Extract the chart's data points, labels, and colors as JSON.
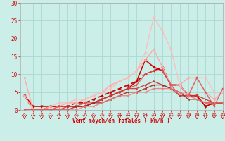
{
  "xlabel": "Vent moyen/en rafales ( km/h )",
  "background_color": "#cceee8",
  "grid_color": "#aad8d2",
  "xlim": [
    -0.5,
    23
  ],
  "ylim": [
    0,
    30
  ],
  "xticks": [
    0,
    1,
    2,
    3,
    4,
    5,
    6,
    7,
    8,
    9,
    10,
    11,
    12,
    13,
    14,
    15,
    16,
    17,
    18,
    19,
    20,
    21,
    22,
    23
  ],
  "yticks": [
    0,
    5,
    10,
    15,
    20,
    25,
    30
  ],
  "series": [
    {
      "x": [
        0,
        1,
        2,
        3,
        4,
        5,
        6,
        7,
        8,
        9,
        10,
        11,
        12,
        13,
        14,
        15,
        16,
        17,
        18,
        19,
        20,
        21,
        22,
        23
      ],
      "y": [
        4,
        0,
        0,
        1,
        1,
        1,
        2,
        2,
        3,
        4,
        5,
        6,
        7,
        8,
        10,
        11,
        12,
        7,
        7,
        4,
        4,
        1,
        2,
        2
      ],
      "color": "#cc0000",
      "marker": "D",
      "lw": 1.2,
      "ms": 1.8,
      "alpha": 1.0,
      "dashes": [
        4,
        2
      ]
    },
    {
      "x": [
        0,
        1,
        2,
        3,
        4,
        5,
        6,
        7,
        8,
        9,
        10,
        11,
        12,
        13,
        14,
        15,
        16,
        17,
        18,
        19,
        20,
        21,
        22,
        23
      ],
      "y": [
        4,
        1,
        1,
        1,
        1,
        1,
        1,
        1,
        2,
        3,
        4,
        5,
        6,
        8,
        14,
        12,
        11,
        7,
        7,
        4,
        4,
        1,
        2,
        2
      ],
      "color": "#cc0000",
      "marker": "v",
      "lw": 1.2,
      "ms": 2.5,
      "alpha": 1.0,
      "dashes": []
    },
    {
      "x": [
        0,
        1,
        2,
        3,
        4,
        5,
        6,
        7,
        8,
        9,
        10,
        11,
        12,
        13,
        14,
        15,
        16,
        17,
        18,
        19,
        20,
        21,
        22,
        23
      ],
      "y": [
        9,
        0,
        0,
        0,
        1,
        2,
        2,
        3,
        4,
        5,
        7,
        8,
        9,
        11,
        14,
        17,
        12,
        7,
        7,
        9,
        9,
        5,
        3,
        5
      ],
      "color": "#ffaaaa",
      "marker": "D",
      "lw": 1.0,
      "ms": 1.8,
      "alpha": 1.0,
      "dashes": []
    },
    {
      "x": [
        0,
        1,
        2,
        3,
        4,
        5,
        6,
        7,
        8,
        9,
        10,
        11,
        12,
        13,
        14,
        15,
        16,
        17,
        18,
        19,
        20,
        21,
        22,
        23
      ],
      "y": [
        4,
        0,
        0,
        1,
        2,
        2,
        3,
        3,
        4,
        5,
        6,
        8,
        9,
        11,
        16,
        26,
        22,
        17,
        7,
        4,
        9,
        9,
        5,
        5
      ],
      "color": "#ffbbbb",
      "marker": "D",
      "lw": 1.0,
      "ms": 1.8,
      "alpha": 0.9,
      "dashes": []
    },
    {
      "x": [
        0,
        1,
        2,
        3,
        4,
        5,
        6,
        7,
        8,
        9,
        10,
        11,
        12,
        13,
        14,
        15,
        16,
        17,
        18,
        19,
        20,
        21,
        22,
        23
      ],
      "y": [
        0,
        0,
        0,
        0,
        1,
        1,
        1,
        2,
        2,
        3,
        4,
        5,
        6,
        7,
        10,
        11,
        11,
        7,
        4,
        4,
        9,
        5,
        1,
        6
      ],
      "color": "#dd5555",
      "marker": "s",
      "lw": 1.0,
      "ms": 1.8,
      "alpha": 0.9,
      "dashes": []
    },
    {
      "x": [
        0,
        1,
        2,
        3,
        4,
        5,
        6,
        7,
        8,
        9,
        10,
        11,
        12,
        13,
        14,
        15,
        16,
        17,
        18,
        19,
        20,
        21,
        22,
        23
      ],
      "y": [
        0,
        0,
        0,
        0,
        0,
        1,
        1,
        1,
        2,
        3,
        4,
        5,
        6,
        6,
        7,
        8,
        7,
        6,
        4,
        4,
        4,
        3,
        2,
        2
      ],
      "color": "#cc3333",
      "marker": ">",
      "lw": 1.0,
      "ms": 1.8,
      "alpha": 0.9,
      "dashes": []
    },
    {
      "x": [
        0,
        1,
        2,
        3,
        4,
        5,
        6,
        7,
        8,
        9,
        10,
        11,
        12,
        13,
        14,
        15,
        16,
        17,
        18,
        19,
        20,
        21,
        22,
        23
      ],
      "y": [
        0,
        0,
        0,
        0,
        0,
        0,
        1,
        1,
        2,
        2,
        3,
        4,
        5,
        5,
        6,
        7,
        7,
        6,
        5,
        3,
        3,
        2,
        2,
        2
      ],
      "color": "#aa2222",
      "marker": "<",
      "lw": 1.0,
      "ms": 1.8,
      "alpha": 0.9,
      "dashes": []
    },
    {
      "x": [
        0,
        1,
        2,
        3,
        4,
        5,
        6,
        7,
        8,
        9,
        10,
        11,
        12,
        13,
        14,
        15,
        16,
        17,
        18,
        19,
        20,
        21,
        22,
        23
      ],
      "y": [
        0,
        0,
        0,
        0,
        0,
        0,
        0,
        1,
        1,
        2,
        3,
        4,
        4,
        5,
        5,
        6,
        6,
        6,
        5,
        4,
        3,
        2,
        2,
        2
      ],
      "color": "#ee7777",
      "marker": "o",
      "lw": 1.0,
      "ms": 1.5,
      "alpha": 0.85,
      "dashes": []
    }
  ]
}
